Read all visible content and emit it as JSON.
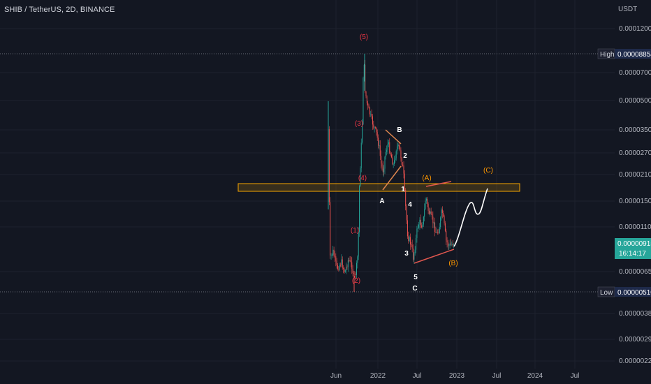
{
  "title": "SHIB / TetherUS, 2D, BINANCE",
  "currency": "USDT",
  "high_tag": {
    "label": "High",
    "value": "0.00008854"
  },
  "low_tag": {
    "label": "Low",
    "value": "0.00000510"
  },
  "last_price": {
    "value": "0.00000915",
    "countdown": "16:14:17"
  },
  "colors": {
    "background": "#131722",
    "grid": "#1e222d",
    "up": "#26a69a",
    "down": "#ef5350",
    "zone": "#f7a600",
    "wave_red": "#f23645",
    "wave_orange": "#ff9800",
    "wave_white": "#ffffff",
    "line_red": "#e0574f",
    "line_orange": "#e0874f"
  },
  "chart_data": {
    "type": "candlestick",
    "scale": "log",
    "y_ticks": [
      "0.00012000",
      "0.00007000",
      "0.00005000",
      "0.00003500",
      "0.00002700",
      "0.00002100",
      "0.00001500",
      "0.00001100",
      "0.00000650",
      "0.00000380",
      "0.00000290",
      "0.00000225"
    ],
    "x_ticks": [
      "Jun",
      "2022",
      "Jul",
      "2023",
      "Jul",
      "2024",
      "Jul"
    ],
    "wave_labels": [
      {
        "text": "(5)",
        "color": "red"
      },
      {
        "text": "(3)",
        "color": "red"
      },
      {
        "text": "(4)",
        "color": "red"
      },
      {
        "text": "(1)",
        "color": "red"
      },
      {
        "text": "(2)",
        "color": "red"
      },
      {
        "text": "B",
        "color": "white"
      },
      {
        "text": "2",
        "color": "white"
      },
      {
        "text": "A",
        "color": "white"
      },
      {
        "text": "1",
        "color": "white"
      },
      {
        "text": "4",
        "color": "white"
      },
      {
        "text": "3",
        "color": "white"
      },
      {
        "text": "5",
        "color": "white"
      },
      {
        "text": "C",
        "color": "white"
      },
      {
        "text": "(A)",
        "color": "orange"
      },
      {
        "text": "(B)",
        "color": "orange"
      },
      {
        "text": "(C)",
        "color": "orange"
      }
    ]
  }
}
